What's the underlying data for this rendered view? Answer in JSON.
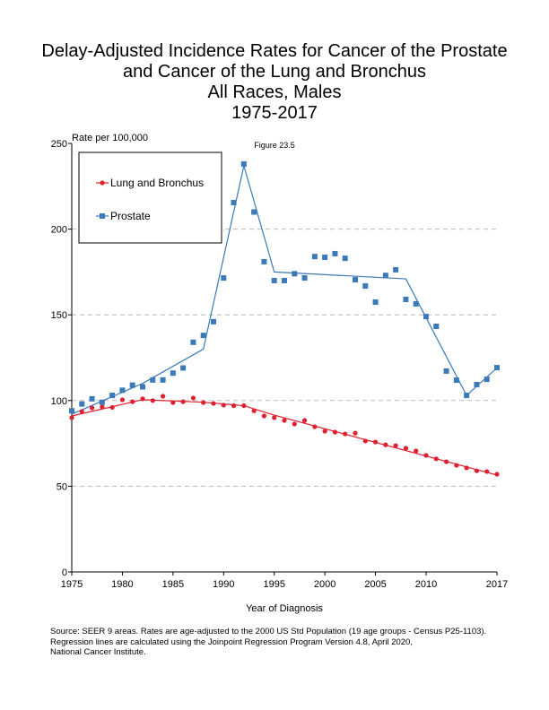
{
  "figure_label": "Figure 23.5",
  "chart_data": {
    "type": "scatter",
    "title": [
      "Delay-Adjusted Incidence Rates for Cancer of the Prostate",
      "and Cancer of the Lung and Bronchus",
      "All Races, Males",
      "1975-2017"
    ],
    "xlabel": "Year of Diagnosis",
    "ylabel": "Rate per 100,000",
    "xlim": [
      1975,
      2017
    ],
    "ylim": [
      0,
      250
    ],
    "xticks": [
      1975,
      1980,
      1985,
      1990,
      1995,
      2000,
      2005,
      2010,
      2017
    ],
    "yticks": [
      0,
      50,
      100,
      150,
      200,
      250
    ],
    "grid": "horizontal dashed",
    "legend_position": "top-left",
    "x": [
      1975,
      1976,
      1977,
      1978,
      1979,
      1980,
      1981,
      1982,
      1983,
      1984,
      1985,
      1986,
      1987,
      1988,
      1989,
      1990,
      1991,
      1992,
      1993,
      1994,
      1995,
      1996,
      1997,
      1998,
      1999,
      2000,
      2001,
      2002,
      2003,
      2004,
      2005,
      2006,
      2007,
      2008,
      2009,
      2010,
      2011,
      2012,
      2013,
      2014,
      2015,
      2016,
      2017
    ],
    "series": [
      {
        "name": "Lung and Bronchus",
        "color": "#e0202e",
        "marker": "circle",
        "values": [
          90,
          93.6,
          95.7,
          96.3,
          96,
          100.4,
          99.3,
          101,
          100,
          102.5,
          98.8,
          99.3,
          101.5,
          98.8,
          98.3,
          97.3,
          97,
          97,
          94,
          91,
          90,
          88.4,
          86.3,
          88.4,
          84.7,
          82.1,
          81.6,
          80.5,
          81,
          76.4,
          75.8,
          74.2,
          73.7,
          72.2,
          70.6,
          68,
          66,
          64.3,
          62.2,
          60.7,
          59,
          58.6,
          57
        ],
        "fit": [
          [
            1975,
            91
          ],
          [
            1982,
            100.5
          ],
          [
            1988,
            99
          ],
          [
            1992,
            97
          ],
          [
            1995,
            91.5
          ],
          [
            2017,
            56.5
          ]
        ]
      },
      {
        "name": "Prostate",
        "color": "#3a7ab8",
        "marker": "square",
        "values": [
          94,
          98,
          101,
          99,
          103,
          106,
          109,
          108,
          112,
          112,
          116,
          119,
          134,
          138,
          146,
          171.5,
          215.5,
          238,
          210,
          181,
          170,
          170,
          174,
          171.5,
          184,
          183.6,
          185.7,
          183,
          170.5,
          166.8,
          157.4,
          173,
          176.3,
          159,
          156.4,
          149,
          143.3,
          117.2,
          111.9,
          103,
          109.3,
          112.4,
          119.2
        ],
        "fit": [
          [
            1975,
            92
          ],
          [
            1982,
            110
          ],
          [
            1988,
            130
          ],
          [
            1992,
            237
          ],
          [
            1995,
            175
          ],
          [
            2008,
            171
          ],
          [
            2014,
            103
          ],
          [
            2017,
            119
          ]
        ]
      }
    ]
  },
  "source_lines": [
    "Source: SEER 9 areas.  Rates are age-adjusted to the 2000 US Std Population (19 age groups - Census P25-1103).",
    "Regression lines are calculated using the Joinpoint Regression Program Version 4.8, April 2020,",
    "National Cancer Institute."
  ]
}
